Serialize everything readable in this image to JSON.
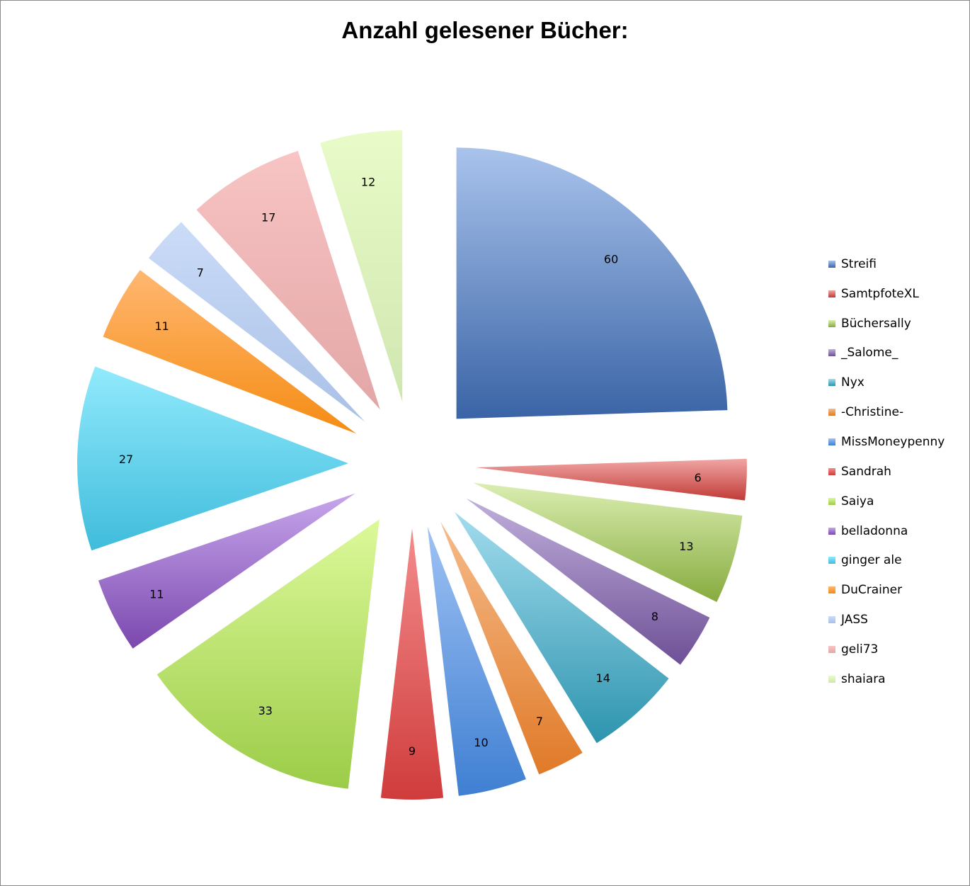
{
  "chart_data": {
    "type": "pie",
    "title": "Anzahl gelesener Bücher:",
    "slices": [
      {
        "label": "Streifi",
        "value": 60,
        "color_light": "#a9c3ec",
        "color_dark": "#3a64a6"
      },
      {
        "label": "SamtpfoteXL",
        "value": 6,
        "color_light": "#f0a6a4",
        "color_dark": "#c03a36"
      },
      {
        "label": "Büchersally",
        "value": 13,
        "color_light": "#dbeeb1",
        "color_dark": "#86ab3e"
      },
      {
        "label": "_Salome_",
        "value": 8,
        "color_light": "#c0afdb",
        "color_dark": "#6e5096"
      },
      {
        "label": "Nyx",
        "value": 14,
        "color_light": "#a2dcee",
        "color_dark": "#2d94ae"
      },
      {
        "label": "-Christine-",
        "value": 7,
        "color_light": "#f6bb8a",
        "color_dark": "#e07a28"
      },
      {
        "label": "MissMoneypenny",
        "value": 10,
        "color_light": "#9fc2f4",
        "color_dark": "#3f7fd2"
      },
      {
        "label": "Sandrah",
        "value": 9,
        "color_light": "#f38c8c",
        "color_dark": "#d03c3c"
      },
      {
        "label": "Saiya",
        "value": 33,
        "color_light": "#dcf99a",
        "color_dark": "#9ccc48"
      },
      {
        "label": "belladonna",
        "value": 11,
        "color_light": "#c7a6ec",
        "color_dark": "#7b48ae"
      },
      {
        "label": "ginger ale",
        "value": 27,
        "color_light": "#92eafc",
        "color_dark": "#3fbcdc"
      },
      {
        "label": "DuCrainer",
        "value": 11,
        "color_light": "#ffb770",
        "color_dark": "#f58c14"
      },
      {
        "label": "JASS",
        "value": 7,
        "color_light": "#cbdcf8",
        "color_dark": "#a9c0e6"
      },
      {
        "label": "geli73",
        "value": 17,
        "color_light": "#f8c4c4",
        "color_dark": "#e3a6a6"
      },
      {
        "label": "shaiara",
        "value": 12,
        "color_light": "#e8fbc8",
        "color_dark": "#d0e6b0"
      }
    ],
    "legend_position": "right",
    "exploded": true
  }
}
